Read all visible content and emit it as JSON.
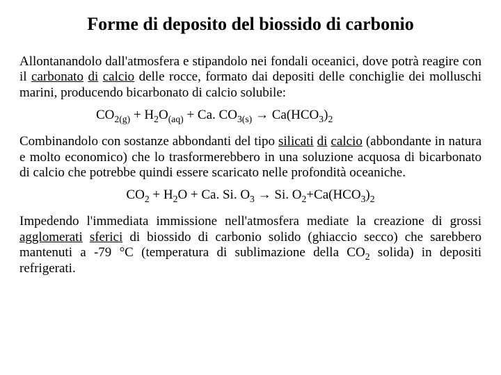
{
  "title": "Forme di deposito del biossido di carbonio",
  "p1_a": "Allontanandolo dall'atmosfera e stipandolo nei fondali oceanici, dove potrà reagire con il ",
  "p1_u1": "carbonato",
  "p1_b": " ",
  "p1_u2": "di",
  "p1_c": " ",
  "p1_u3": "calcio",
  "p1_d": " delle rocce, formato dai depositi delle conchiglie dei molluschi marini, producendo bicarbonato di calcio solubile:",
  "eq1": {
    "l1": "CO",
    "s1": "2(g)",
    "plus1": " + H",
    "s2": "2",
    "o1": "O",
    "s3": "(aq)",
    "plus2": " + Ca. CO",
    "s4": "3(s)",
    "arrow": "  →  ",
    "r1": "Ca(HCO",
    "s5": "3",
    "r2": ")",
    "s6": "2"
  },
  "p2_a": "Combinandolo con sostanze abbondanti del tipo ",
  "p2_u1": "silicati",
  "p2_b": " ",
  "p2_u2": "di",
  "p2_c": " ",
  "p2_u3": "calcio",
  "p2_d": " (abbondante in  natura e molto economico) che lo trasformerebbero in una soluzione acquosa di bicarbonato di calcio che potrebbe quindi essere scaricato nelle profondità oceaniche.",
  "eq2": {
    "l1": "CO",
    "s1": "2",
    "plus1": " + H",
    "s2": "2",
    "o1": "O + Ca. Si. O",
    "s3": "3",
    "arrow": "  →  ",
    "r1": "Si. O",
    "s4": "2",
    "r2": "+Ca(HCO",
    "s5": "3",
    "r3": ")",
    "s6": "2"
  },
  "p3_a": "Impedendo l'immediata immissione nell'atmosfera mediate la creazione di grossi ",
  "p3_u1": "agglomerati",
  "p3_b": " ",
  "p3_u2": "sferici",
  "p3_c": " di biossido di carbonio solido (ghiaccio secco) che sarebbero mantenuti a -79 °C (temperatura di sublimazione della CO",
  "p3_s1": "2",
  "p3_d": " solida) in depositi refrigerati."
}
